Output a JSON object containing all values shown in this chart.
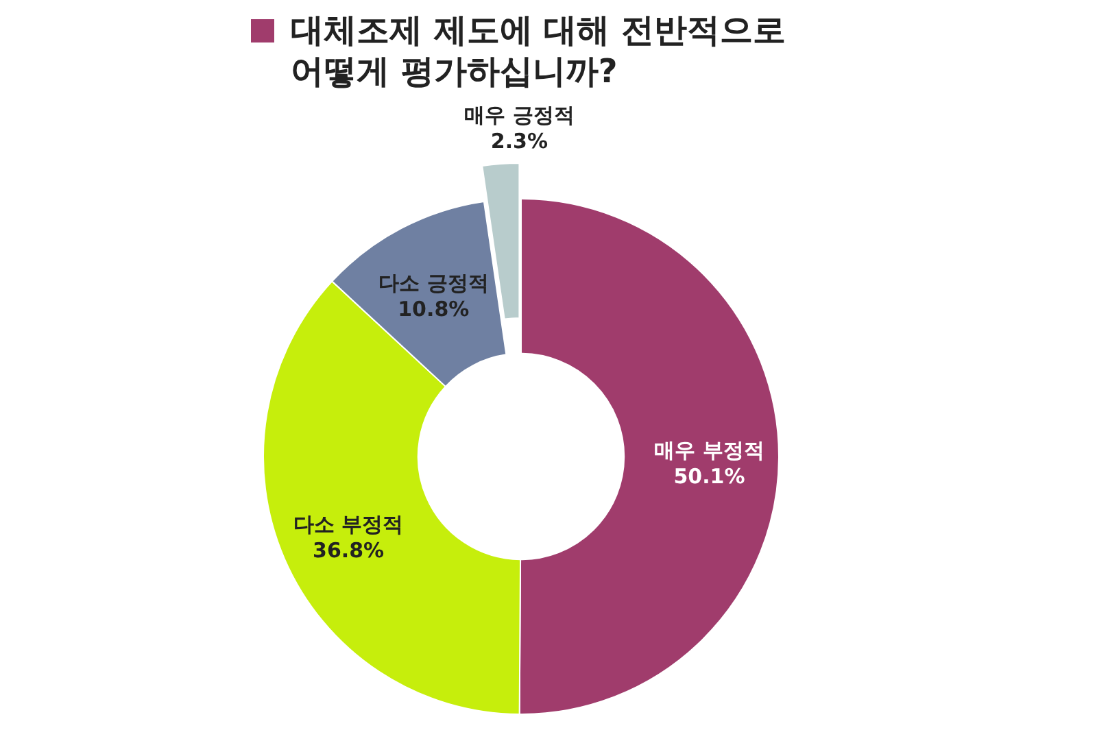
{
  "chart_data": {
    "type": "donut",
    "title": "대체조제 제도에 대해 전반적으로 어떻게 평가하십니까?",
    "categories": [
      "매우 부정적",
      "다소 부정적",
      "다소 긍정적",
      "매우 긍정적"
    ],
    "values": [
      50.1,
      36.8,
      10.8,
      2.3
    ],
    "value_labels": [
      "50.1%",
      "36.8%",
      "10.8%",
      "2.3%"
    ],
    "colors": [
      "#a03c6c",
      "#c6ee0c",
      "#6f80a2",
      "#b8cccc"
    ]
  }
}
